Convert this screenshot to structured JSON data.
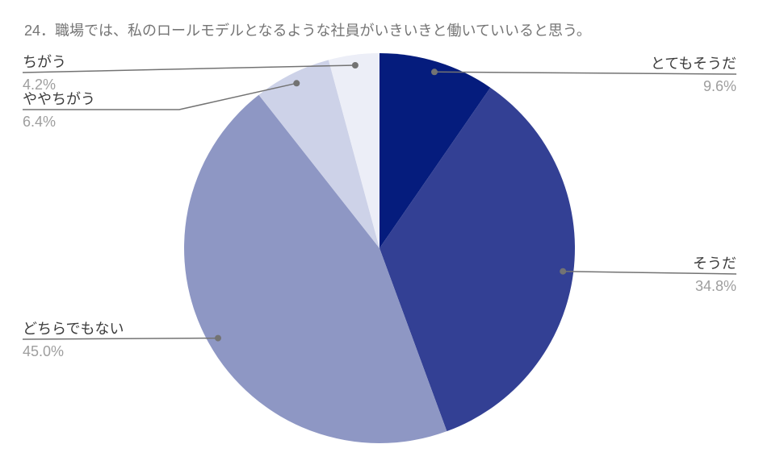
{
  "chart_data": {
    "type": "pie",
    "title": "24．職場では、私のロールモデルとなるような社員がいきいきと働いていいると思う。",
    "categories": [
      "とてもそうだ",
      "そうだ",
      "どちらでもない",
      "ややちがう",
      "ちがう"
    ],
    "values": [
      9.6,
      34.8,
      45.0,
      6.4,
      4.2
    ],
    "value_labels": [
      "9.6%",
      "34.8%",
      "45.0%",
      "6.4%",
      "4.2%"
    ],
    "colors": [
      "#051c7d",
      "#334094",
      "#8e97c4",
      "#cdd2e8",
      "#eceef7"
    ],
    "start_angle_deg": 0,
    "direction": "clockwise",
    "legend_position": "labeled-callouts",
    "background": "#ffffff",
    "title_color": "#757575",
    "label_color": "#3c3c3c",
    "pct_color": "#9e9e9e",
    "line_color": "#737373"
  }
}
